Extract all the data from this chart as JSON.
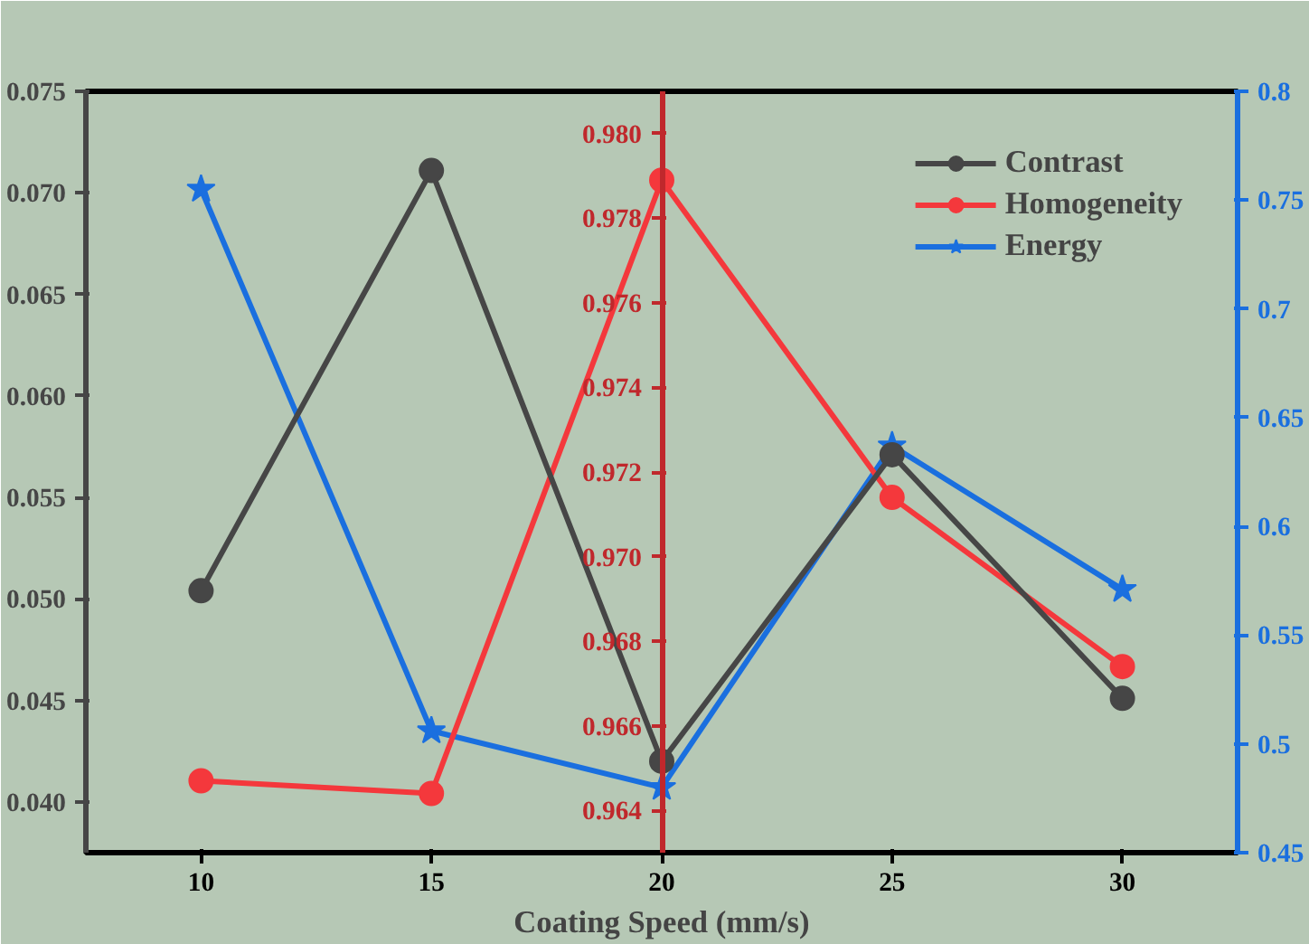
{
  "chart_data": {
    "type": "line",
    "xlabel": "Coating Speed (mm/s)",
    "x": [
      10,
      15,
      20,
      25,
      30
    ],
    "xlim": [
      7.5,
      32.5
    ],
    "xticks": [
      10,
      15,
      20,
      25,
      30
    ],
    "ylim": [
      0.0375,
      0.075
    ],
    "yticks": [
      {
        "value": 0.04,
        "label": "0.040"
      },
      {
        "value": 0.045,
        "label": "0.045"
      },
      {
        "value": 0.05,
        "label": "0.050"
      },
      {
        "value": 0.055,
        "label": "0.055"
      },
      {
        "value": 0.06,
        "label": "0.060"
      },
      {
        "value": 0.065,
        "label": "0.065"
      },
      {
        "value": 0.07,
        "label": "0.070"
      },
      {
        "value": 0.075,
        "label": "0.075"
      }
    ],
    "y3lim": [
      0.963,
      0.981
    ],
    "y3ticks": [
      0.964,
      0.966,
      0.968,
      {
        "value": 0.97,
        "label": "0.970"
      },
      0.972,
      0.974,
      0.976,
      0.978,
      {
        "value": 0.98,
        "label": "0.980"
      }
    ],
    "y2lim": [
      0.45,
      0.8
    ],
    "y2ticks": [
      0.45,
      0.5,
      0.55,
      0.6,
      0.65,
      0.7,
      0.75,
      0.8
    ],
    "series": [
      {
        "name": "Contrast",
        "color": "#464646",
        "marker": "circle",
        "values": [
          0.0504,
          0.0711,
          0.042,
          0.0571,
          0.0451
        ]
      },
      {
        "name": "Homogeneity",
        "color": "#f4383c",
        "marker": "circle",
        "axis": "y3",
        "values": [
          0.9647,
          0.9644,
          0.9789,
          0.9714,
          0.9674
        ]
      },
      {
        "name": "Energy",
        "color": "#1a6fdf",
        "marker": "star",
        "axis": "y2",
        "values": [
          0.755,
          0.506,
          0.48,
          0.637,
          0.571
        ]
      }
    ],
    "legend": "top right",
    "grid": false,
    "line_style": "solid"
  }
}
